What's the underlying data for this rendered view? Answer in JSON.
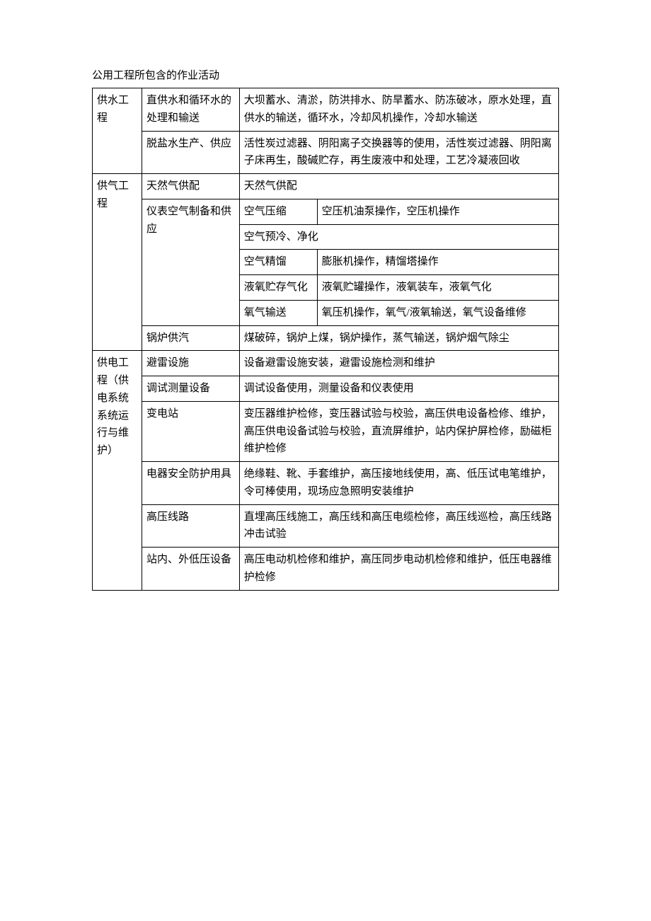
{
  "title": "公用工程所包含的作业活动",
  "table": {
    "rows": [
      {
        "cat": "供水工程",
        "catRowspan": 2,
        "sub": "直供水和循环水的处理和输送",
        "desc": "大坝蓄水、清淤，防洪排水、防旱蓄水、防冻破冰，原水处理，直供水的输送，循环水，冷却风机操作，冷却水输送",
        "descColspan": 2
      },
      {
        "sub": "脱盐水生产、供应",
        "desc": "活性炭过滤器、阴阳离子交换器等的使用，活性炭过滤器、阴阳离子床再生，酸碱贮存，再生废液中和处理，工艺冷凝液回收",
        "descColspan": 2
      },
      {
        "cat": "供气工程",
        "catRowspan": 7,
        "sub": "天然气供配",
        "desc": "天然气供配",
        "descColspan": 2
      },
      {
        "sub": "仪表空气制备和供应",
        "subRowspan": 5,
        "mid": "空气压缩",
        "desc": "空压机油泵操作，空压机操作"
      },
      {
        "mid": "空气预冷、净化",
        "midColspan": 2
      },
      {
        "mid": "空气精馏",
        "desc": "膨胀机操作，精馏塔操作"
      },
      {
        "mid": "液氧贮存气化",
        "desc": "液氧贮罐操作，液氧装车，液氧气化"
      },
      {
        "mid": "氧气输送",
        "desc": "氧压机操作，氧气/液氧输送，氧气设备维修"
      },
      {
        "sub": "锅炉供汽",
        "desc": "煤破碎，锅炉上煤，锅炉操作，蒸气输送，锅炉烟气除尘",
        "descColspan": 2
      },
      {
        "cat": "供电工程（供电系统系统运行与维护）",
        "catRowspan": 6,
        "sub": "避雷设施",
        "desc": "设备避雷设施安装，避雷设施检测和维护",
        "descColspan": 2
      },
      {
        "sub": "调试测量设备",
        "desc": "调试设备使用，测量设备和仪表使用",
        "descColspan": 2
      },
      {
        "sub": "变电站",
        "desc": "变压器维护检修，变压器试验与校验，高压供电设备检修、维护，高压供电设备试验与校验，直流屏维护，站内保护屏检修，励磁柜维护检修",
        "descColspan": 2
      },
      {
        "sub": "电器安全防护用具",
        "desc": "绝缘鞋、靴、手套维护，高压接地线使用，高、低压试电笔维护，令可棒使用，现场应急照明安装维护",
        "descColspan": 2
      },
      {
        "sub": "高压线路",
        "desc": "直埋高压线施工，高压线和高压电缆检修，高压线巡检，高压线路冲击试验",
        "descColspan": 2
      },
      {
        "sub": "站内、外低压设备",
        "desc": "高压电动机检修和维护，高压同步电动机检修和维护，低压电器维护检修",
        "descColspan": 2
      }
    ]
  },
  "colors": {
    "text": "#000000",
    "background": "#ffffff",
    "border": "#000000"
  },
  "typography": {
    "fontSize": 15,
    "fontFamily": "SimSun",
    "lineHeight": 1.65
  }
}
